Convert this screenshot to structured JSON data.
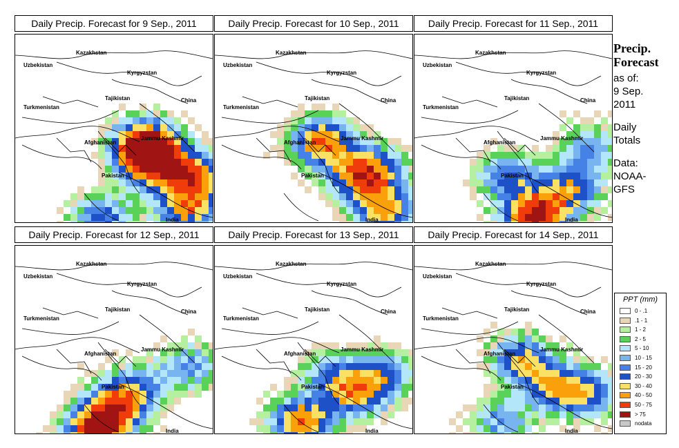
{
  "panels": [
    {
      "title": "Daily Precip. Forecast for  9 Sep., 2011"
    },
    {
      "title": "Daily Precip. Forecast for  10 Sep., 2011"
    },
    {
      "title": "Daily Precip. Forecast for  11 Sep., 2011"
    },
    {
      "title": "Daily Precip. Forecast for  12 Sep., 2011"
    },
    {
      "title": "Daily Precip. Forecast for  13 Sep., 2011"
    },
    {
      "title": "Daily Precip. Forecast for  14 Sep., 2011"
    }
  ],
  "map_labels": {
    "kazakhstan": "Kazakhstan",
    "uzbekistan": "Uzbekistan",
    "kyrgyzstan": "Kyrgyzstan",
    "tajikistan": "Tajikistan",
    "turkmenistan": "Turkmenistan",
    "china": "China",
    "afghanistan": "Afghanistan",
    "jammu_kashmir": "Jammu Kashmir",
    "pakistan": "Pakistan",
    "india": "India"
  },
  "side": {
    "title_line1": "Precip.",
    "title_line2": "Forecast",
    "asof_line1": "as of:",
    "asof_line2": "9 Sep.",
    "asof_line3": "2011",
    "totals_line1": "Daily",
    "totals_line2": "Totals",
    "data_line1": "Data:",
    "data_line2": "NOAA-",
    "data_line3": "GFS"
  },
  "legend": {
    "title": "PPT (mm)",
    "items": [
      {
        "label": "0 - .1",
        "color": "#ffffff"
      },
      {
        "label": ".1 - 1",
        "color": "#e8d6b6"
      },
      {
        "label": "1 - 2",
        "color": "#b4f0a0"
      },
      {
        "label": "2 - 5",
        "color": "#5ad25a"
      },
      {
        "label": "5 - 10",
        "color": "#b4e6fa"
      },
      {
        "label": "10 - 15",
        "color": "#78b4f0"
      },
      {
        "label": "15 - 20",
        "color": "#4682e6"
      },
      {
        "label": "20 - 30",
        "color": "#1e50c8"
      },
      {
        "label": "30 - 40",
        "color": "#fae164"
      },
      {
        "label": "40 - 50",
        "color": "#faa00a"
      },
      {
        "label": "50 - 75",
        "color": "#f03c0a"
      },
      {
        "label": "> 75",
        "color": "#a01414"
      },
      {
        "label": "nodata",
        "color": "#c8c8c8"
      }
    ]
  }
}
